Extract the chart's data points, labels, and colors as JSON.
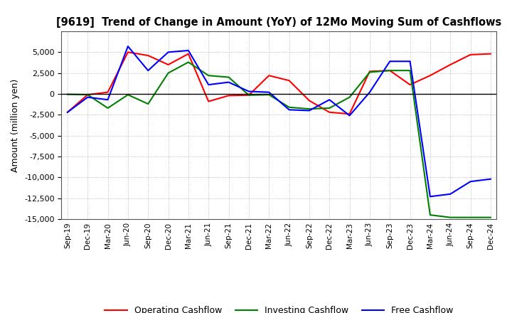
{
  "title": "[9619]  Trend of Change in Amount (YoY) of 12Mo Moving Sum of Cashflows",
  "ylabel": "Amount (million yen)",
  "background_color": "#ffffff",
  "grid_color": "#999999",
  "xlabels": [
    "Sep-19",
    "Dec-19",
    "Mar-20",
    "Jun-20",
    "Sep-20",
    "Dec-20",
    "Mar-21",
    "Jun-21",
    "Sep-21",
    "Dec-21",
    "Mar-22",
    "Jun-22",
    "Sep-22",
    "Dec-22",
    "Mar-23",
    "Jun-23",
    "Sep-23",
    "Dec-23",
    "Mar-24",
    "Jun-24",
    "Sep-24",
    "Dec-24"
  ],
  "operating": [
    -2200,
    -100,
    200,
    5000,
    4600,
    3500,
    4800,
    -900,
    -200,
    -150,
    2200,
    1600,
    -800,
    -2200,
    -2400,
    2700,
    2800,
    1100,
    2200,
    3500,
    4700,
    4800
  ],
  "investing": [
    -50,
    -100,
    -1700,
    -100,
    -1200,
    2500,
    3800,
    2200,
    2000,
    -150,
    -100,
    -1600,
    -1800,
    -1700,
    -400,
    2600,
    2800,
    2800,
    -14500,
    -14800,
    -14800,
    -14800
  ],
  "free": [
    -2200,
    -400,
    -700,
    5700,
    2800,
    5000,
    5200,
    1100,
    1400,
    300,
    200,
    -1900,
    -2000,
    -700,
    -2600,
    200,
    3900,
    3900,
    -12300,
    -12000,
    -10500,
    -10200
  ],
  "ylim": [
    -15000,
    7500
  ],
  "yticks": [
    -15000,
    -12500,
    -10000,
    -7500,
    -5000,
    -2500,
    0,
    2500,
    5000
  ],
  "line_colors": {
    "operating": "#ff0000",
    "investing": "#008000",
    "free": "#0000ff"
  },
  "legend_labels": [
    "Operating Cashflow",
    "Investing Cashflow",
    "Free Cashflow"
  ],
  "title_fontsize": 10.5,
  "ylabel_fontsize": 9,
  "tick_fontsize": 8,
  "xtick_fontsize": 7.5,
  "legend_fontsize": 9,
  "linewidth": 1.5
}
